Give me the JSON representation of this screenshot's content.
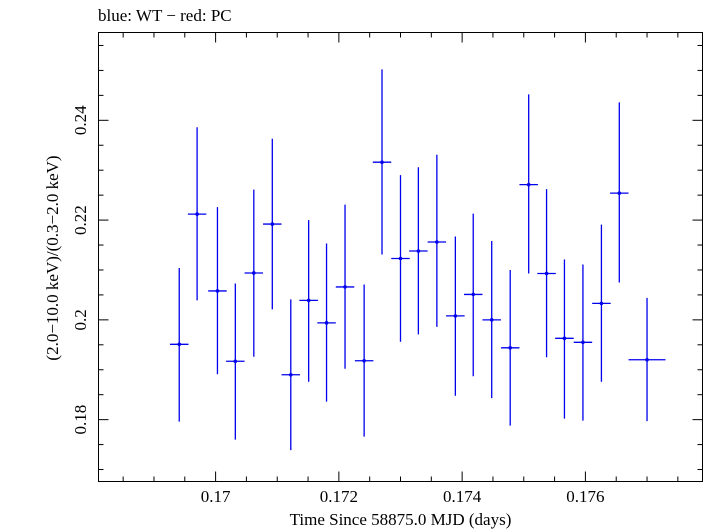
{
  "chart_data": {
    "type": "scatter",
    "title": "blue: WT − red: PC",
    "xlabel": "Time Since 58875.0 MJD (days)",
    "ylabel": "(2.0−10.0 keV)/(0.3−2.0 keV)",
    "xlim": [
      0.1681,
      0.1779
    ],
    "ylim": [
      0.1676,
      0.2576
    ],
    "xticks": [
      0.17,
      0.172,
      0.174,
      0.176
    ],
    "xtick_labels": [
      "0.17",
      "0.172",
      "0.174",
      "0.176"
    ],
    "yticks": [
      0.18,
      0.2,
      0.22,
      0.24
    ],
    "ytick_labels": [
      "0.18",
      "0.2",
      "0.22",
      "0.24"
    ],
    "grid": false,
    "colors": {
      "WT": "#0000ee"
    },
    "series": [
      {
        "name": "WT",
        "points": [
          {
            "x": 0.16941,
            "xerr": 0.00015,
            "y": 0.1951,
            "ylo": 0.1796,
            "yhi": 0.2104
          },
          {
            "x": 0.1697,
            "xerr": 0.00015,
            "y": 0.2212,
            "ylo": 0.2039,
            "yhi": 0.2386
          },
          {
            "x": 0.17003,
            "xerr": 0.00015,
            "y": 0.2058,
            "ylo": 0.1891,
            "yhi": 0.2226
          },
          {
            "x": 0.17032,
            "xerr": 0.00015,
            "y": 0.1917,
            "ylo": 0.176,
            "yhi": 0.2073
          },
          {
            "x": 0.17062,
            "xerr": 0.00015,
            "y": 0.2094,
            "ylo": 0.1926,
            "yhi": 0.2261
          },
          {
            "x": 0.17092,
            "xerr": 0.00015,
            "y": 0.2192,
            "ylo": 0.2021,
            "yhi": 0.2363
          },
          {
            "x": 0.17122,
            "xerr": 0.00015,
            "y": 0.189,
            "ylo": 0.1739,
            "yhi": 0.2041
          },
          {
            "x": 0.17151,
            "xerr": 0.00015,
            "y": 0.2039,
            "ylo": 0.1876,
            "yhi": 0.22
          },
          {
            "x": 0.1718,
            "xerr": 0.00015,
            "y": 0.1994,
            "ylo": 0.1836,
            "yhi": 0.2153
          },
          {
            "x": 0.1721,
            "xerr": 0.00015,
            "y": 0.2066,
            "ylo": 0.1902,
            "yhi": 0.2231
          },
          {
            "x": 0.17241,
            "xerr": 0.00015,
            "y": 0.1918,
            "ylo": 0.1766,
            "yhi": 0.2071
          },
          {
            "x": 0.1727,
            "xerr": 0.00015,
            "y": 0.2316,
            "ylo": 0.2131,
            "yhi": 0.2502
          },
          {
            "x": 0.173,
            "xerr": 0.00015,
            "y": 0.2123,
            "ylo": 0.1956,
            "yhi": 0.229
          },
          {
            "x": 0.17329,
            "xerr": 0.00015,
            "y": 0.2138,
            "ylo": 0.1971,
            "yhi": 0.2306
          },
          {
            "x": 0.17359,
            "xerr": 0.00015,
            "y": 0.2156,
            "ylo": 0.1986,
            "yhi": 0.2331
          },
          {
            "x": 0.17389,
            "xerr": 0.00015,
            "y": 0.2008,
            "ylo": 0.1848,
            "yhi": 0.2167
          },
          {
            "x": 0.17418,
            "xerr": 0.00015,
            "y": 0.2051,
            "ylo": 0.1887,
            "yhi": 0.2213
          },
          {
            "x": 0.17448,
            "xerr": 0.00015,
            "y": 0.2,
            "ylo": 0.1843,
            "yhi": 0.2158
          },
          {
            "x": 0.17478,
            "xerr": 0.00015,
            "y": 0.1944,
            "ylo": 0.1788,
            "yhi": 0.21
          },
          {
            "x": 0.17508,
            "xerr": 0.00015,
            "y": 0.2271,
            "ylo": 0.2093,
            "yhi": 0.2452
          },
          {
            "x": 0.17537,
            "xerr": 0.00015,
            "y": 0.2093,
            "ylo": 0.1925,
            "yhi": 0.2262
          },
          {
            "x": 0.17566,
            "xerr": 0.00015,
            "y": 0.1963,
            "ylo": 0.1802,
            "yhi": 0.2121
          },
          {
            "x": 0.17596,
            "xerr": 0.00015,
            "y": 0.1955,
            "ylo": 0.1798,
            "yhi": 0.2111
          },
          {
            "x": 0.17626,
            "xerr": 0.00015,
            "y": 0.2033,
            "ylo": 0.1876,
            "yhi": 0.2191
          },
          {
            "x": 0.17655,
            "xerr": 0.00015,
            "y": 0.2254,
            "ylo": 0.2075,
            "yhi": 0.2436
          },
          {
            "x": 0.177,
            "xerr": 0.0003,
            "y": 0.192,
            "ylo": 0.1797,
            "yhi": 0.2044
          }
        ]
      }
    ]
  }
}
